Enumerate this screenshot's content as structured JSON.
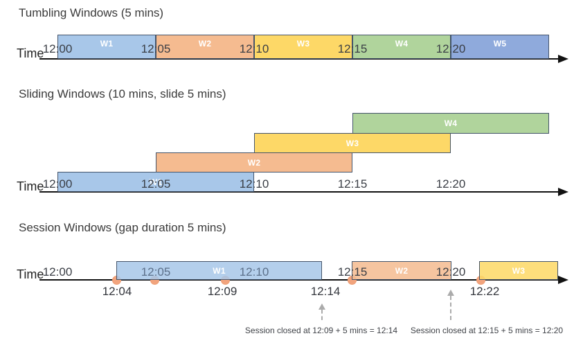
{
  "colors": {
    "window_blue": "#A8C7E9",
    "window_orange": "#F5BB90",
    "window_yellow": "#FDD867",
    "window_green": "#B0D49C",
    "window_indigo": "#8FAADC",
    "bar_border": "#44546A",
    "event_dot": "#F2A47D",
    "axis": "#121212"
  },
  "sections": [
    {
      "id": "tumbling",
      "title": "Tumbling Windows (5 mins)",
      "axis_label": "Time",
      "ticks": [
        "12:00",
        "12:05",
        "12:10",
        "12:15",
        "12:20"
      ],
      "windows": [
        {
          "label": "W1",
          "start": "12:00",
          "end": "12:05",
          "color_key": "window_blue"
        },
        {
          "label": "W2",
          "start": "12:05",
          "end": "12:10",
          "color_key": "window_orange"
        },
        {
          "label": "W3",
          "start": "12:10",
          "end": "12:15",
          "color_key": "window_yellow"
        },
        {
          "label": "W4",
          "start": "12:15",
          "end": "12:20",
          "color_key": "window_green"
        },
        {
          "label": "W5",
          "start": "12:20",
          "end": "12:25",
          "color_key": "window_indigo"
        }
      ]
    },
    {
      "id": "sliding",
      "title": "Sliding Windows (10 mins, slide 5 mins)",
      "axis_label": "Time",
      "ticks": [
        "12:00",
        "12:05",
        "12:10",
        "12:15",
        "12:20"
      ],
      "windows": [
        {
          "label": "W1",
          "start": "12:00",
          "end": "12:10",
          "color_key": "window_blue"
        },
        {
          "label": "W2",
          "start": "12:05",
          "end": "12:15",
          "color_key": "window_orange"
        },
        {
          "label": "W3",
          "start": "12:10",
          "end": "12:20",
          "color_key": "window_yellow"
        },
        {
          "label": "W4",
          "start": "12:15",
          "end": "12:25",
          "color_key": "window_green"
        }
      ]
    },
    {
      "id": "session",
      "title": "Session Windows (gap duration 5 mins)",
      "axis_label": "Time",
      "ticks": [
        "12:00",
        "12:05",
        "12:10",
        "12:15",
        "12:20"
      ],
      "windows": [
        {
          "label": "W1",
          "start": "12:04",
          "end": "12:14",
          "color_key": "window_blue"
        },
        {
          "label": "W2",
          "start": "12:15",
          "end": "12:20",
          "color_key": "window_orange"
        },
        {
          "label": "W3",
          "start": "12:22",
          "end": "",
          "color_key": "window_yellow"
        }
      ],
      "events": {
        "dot_count": 5,
        "below_axis_labels": [
          "12:04",
          "12:09",
          "12:14",
          "12:22"
        ]
      },
      "annotations": [
        {
          "text": "Session closed at 12:09 + 5 mins = 12:14",
          "points_to": "12:14"
        },
        {
          "text": "Session closed at 12:15 + 5 mins = 12:20",
          "points_to": "12:20"
        }
      ]
    }
  ]
}
